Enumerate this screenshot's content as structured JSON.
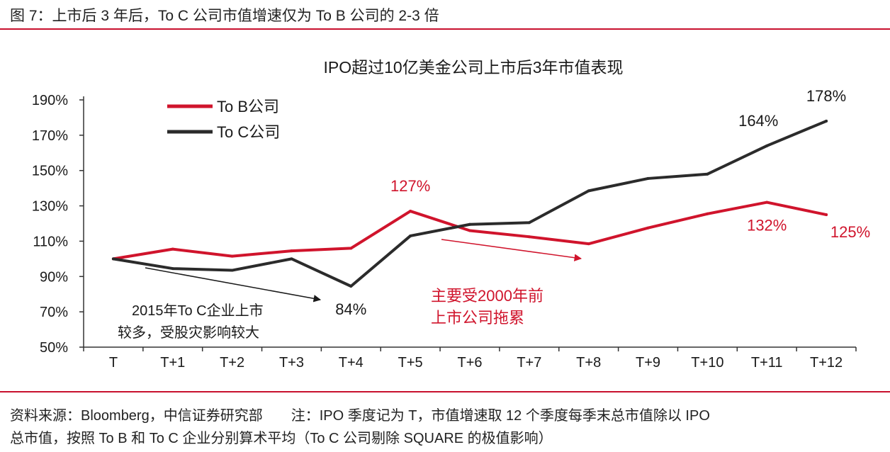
{
  "figure_caption": "图 7：上市后 3 年后，To C 公司市值增速仅为 To B 公司的 2-3 倍",
  "footer": {
    "source": "资料来源：Bloomberg，中信证券研究部",
    "note_line1": "注：IPO 季度记为 T，市值增速取 12 个季度每季末总市值除以 IPO",
    "note_line2": "总市值，按照 To B 和 To C 企业分别算术平均（To C 公司剔除 SQUARE 的极值影响）"
  },
  "chart_data": {
    "type": "line",
    "title": "IPO超过10亿美金公司上市后3年市值表现",
    "categories": [
      "T",
      "T+1",
      "T+2",
      "T+3",
      "T+4",
      "T+5",
      "T+6",
      "T+7",
      "T+8",
      "T+9",
      "T+10",
      "T+11",
      "T+12"
    ],
    "y_ticks": [
      "50%",
      "70%",
      "90%",
      "110%",
      "130%",
      "150%",
      "170%",
      "190%"
    ],
    "ylim": [
      50,
      190
    ],
    "legend_position": "top-left",
    "grid": false,
    "series": [
      {
        "name": "To B公司",
        "color": "#d0142c",
        "values": [
          100,
          105.5,
          101.5,
          104.5,
          106,
          127,
          116,
          112.5,
          108.5,
          117.5,
          125.5,
          132,
          125
        ]
      },
      {
        "name": "To C公司",
        "color": "#2b2b2b",
        "values": [
          100,
          94.5,
          93.5,
          100,
          84.5,
          113,
          119.5,
          120.5,
          138.5,
          145.5,
          148,
          164,
          178
        ]
      }
    ],
    "data_labels": [
      {
        "text": "127%",
        "series": 0,
        "index": 5,
        "color": "#d0142c"
      },
      {
        "text": "132%",
        "series": 0,
        "index": 11,
        "color": "#d0142c"
      },
      {
        "text": "125%",
        "series": 0,
        "index": 12,
        "color": "#d0142c"
      },
      {
        "text": "84%",
        "series": 1,
        "index": 4,
        "color": "#1a1a1a"
      },
      {
        "text": "164%",
        "series": 1,
        "index": 11,
        "color": "#1a1a1a"
      },
      {
        "text": "178%",
        "series": 1,
        "index": 12,
        "color": "#1a1a1a"
      }
    ],
    "annotations": [
      {
        "lines": [
          "2015年To  C企业上市",
          "较多，受股灾影响较大"
        ],
        "color": "#1a1a1a",
        "arrow_color": "#1a1a1a"
      },
      {
        "lines": [
          "主要受2000年前",
          "上市公司拖累"
        ],
        "color": "#d0142c",
        "arrow_color": "#d0142c"
      }
    ]
  }
}
